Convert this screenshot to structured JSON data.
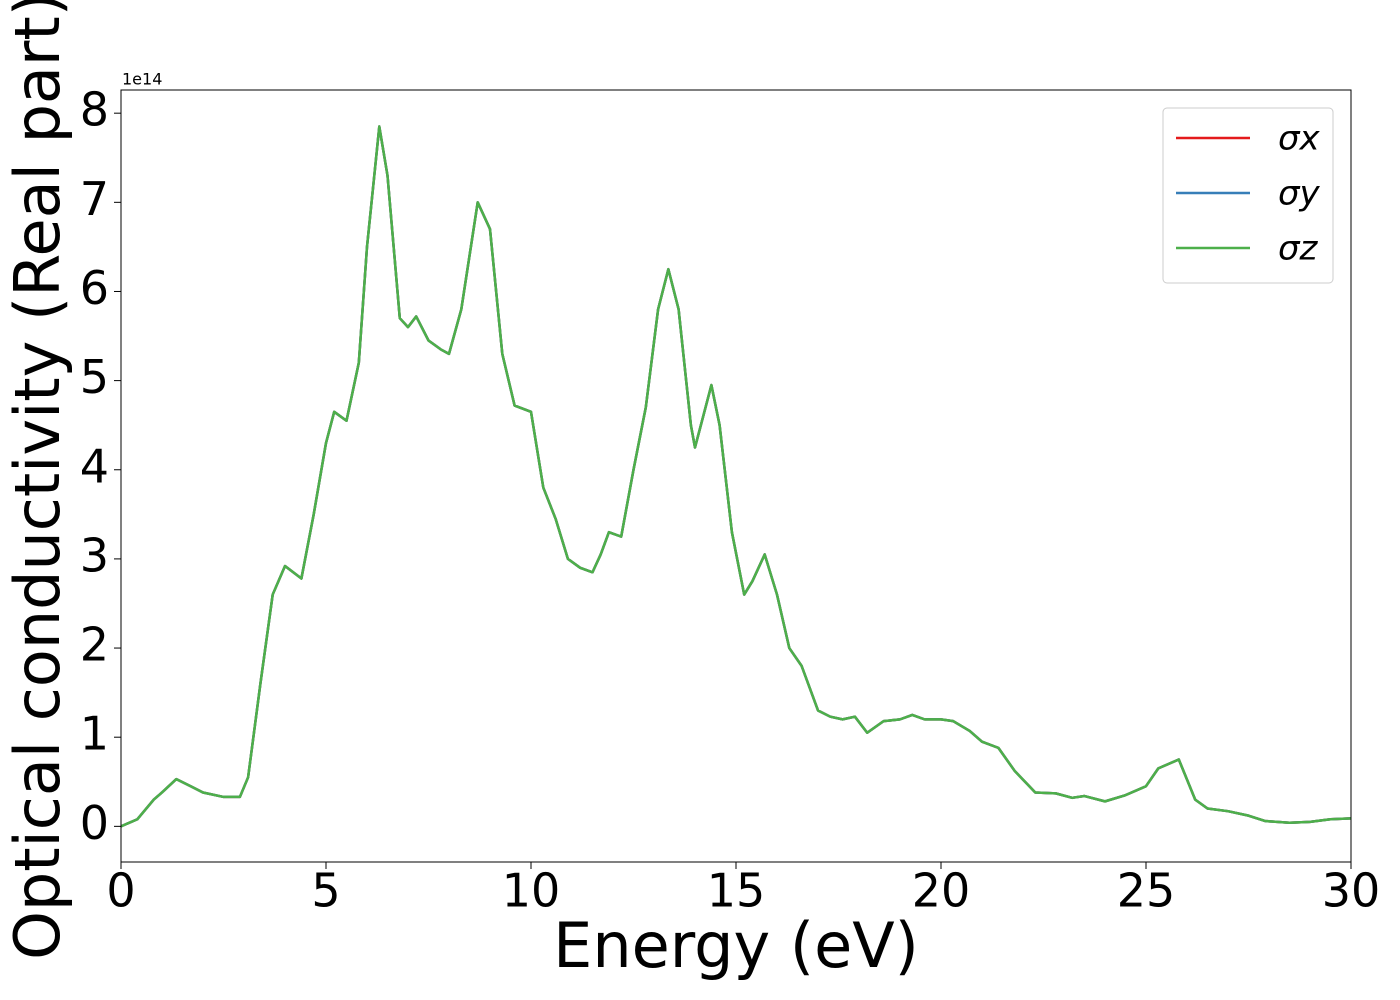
{
  "chart_data": {
    "type": "line",
    "x_label": "Energy (eV)",
    "y_label": "Optical conductivity (Real part)",
    "y_offset_label": "1e14",
    "x": [
      0,
      0.4,
      0.8,
      1.0,
      1.35,
      1.7,
      2.0,
      2.5,
      2.9,
      3.1,
      3.4,
      3.7,
      4.0,
      4.4,
      4.7,
      5.0,
      5.2,
      5.5,
      5.8,
      6.0,
      6.3,
      6.5,
      6.8,
      7.0,
      7.2,
      7.5,
      7.8,
      8.0,
      8.3,
      8.7,
      9.0,
      9.3,
      9.6,
      10.0,
      10.3,
      10.6,
      10.9,
      11.2,
      11.5,
      11.7,
      11.9,
      12.2,
      12.5,
      12.8,
      13.1,
      13.35,
      13.6,
      13.9,
      14.0,
      14.2,
      14.4,
      14.6,
      14.9,
      15.2,
      15.4,
      15.7,
      16.0,
      16.3,
      16.6,
      17.0,
      17.3,
      17.6,
      17.9,
      18.2,
      18.6,
      19.0,
      19.3,
      19.6,
      20.0,
      20.3,
      20.7,
      21.0,
      21.4,
      21.8,
      22.3,
      22.8,
      23.2,
      23.5,
      24.0,
      24.5,
      25.0,
      25.3,
      25.8,
      26.2,
      26.5,
      27.0,
      27.5,
      27.9,
      28.5,
      29.0,
      29.5,
      30.0
    ],
    "series": [
      {
        "name": "σx",
        "color": "#e41a1c",
        "values": [
          0,
          0.08,
          0.3,
          0.38,
          0.53,
          0.45,
          0.38,
          0.33,
          0.33,
          0.55,
          1.6,
          2.6,
          2.92,
          2.78,
          3.5,
          4.3,
          4.65,
          4.55,
          5.2,
          6.5,
          7.85,
          7.3,
          5.7,
          5.6,
          5.72,
          5.45,
          5.35,
          5.3,
          5.8,
          7.0,
          6.7,
          5.3,
          4.72,
          4.65,
          3.8,
          3.45,
          3.0,
          2.9,
          2.85,
          3.05,
          3.3,
          3.25,
          4.0,
          4.7,
          5.8,
          6.25,
          5.8,
          4.5,
          4.25,
          4.6,
          4.95,
          4.5,
          3.3,
          2.6,
          2.75,
          3.05,
          2.6,
          2.0,
          1.8,
          1.3,
          1.23,
          1.2,
          1.23,
          1.05,
          1.18,
          1.2,
          1.25,
          1.2,
          1.2,
          1.18,
          1.07,
          0.95,
          0.88,
          0.62,
          0.38,
          0.37,
          0.32,
          0.34,
          0.28,
          0.35,
          0.45,
          0.65,
          0.75,
          0.3,
          0.2,
          0.17,
          0.12,
          0.06,
          0.04,
          0.05,
          0.08,
          0.09
        ]
      },
      {
        "name": "σy",
        "color": "#377eb8",
        "values": [
          0,
          0.08,
          0.3,
          0.38,
          0.53,
          0.45,
          0.38,
          0.33,
          0.33,
          0.55,
          1.6,
          2.6,
          2.92,
          2.78,
          3.5,
          4.3,
          4.65,
          4.55,
          5.2,
          6.5,
          7.85,
          7.3,
          5.7,
          5.6,
          5.72,
          5.45,
          5.35,
          5.3,
          5.8,
          7.0,
          6.7,
          5.3,
          4.72,
          4.65,
          3.8,
          3.45,
          3.0,
          2.9,
          2.85,
          3.05,
          3.3,
          3.25,
          4.0,
          4.7,
          5.8,
          6.25,
          5.8,
          4.5,
          4.25,
          4.6,
          4.95,
          4.5,
          3.3,
          2.6,
          2.75,
          3.05,
          2.6,
          2.0,
          1.8,
          1.3,
          1.23,
          1.2,
          1.23,
          1.05,
          1.18,
          1.2,
          1.25,
          1.2,
          1.2,
          1.18,
          1.07,
          0.95,
          0.88,
          0.62,
          0.38,
          0.37,
          0.32,
          0.34,
          0.28,
          0.35,
          0.45,
          0.65,
          0.75,
          0.3,
          0.2,
          0.17,
          0.12,
          0.06,
          0.04,
          0.05,
          0.08,
          0.09
        ]
      },
      {
        "name": "σz",
        "color": "#4daf4a",
        "values": [
          0,
          0.08,
          0.3,
          0.38,
          0.53,
          0.45,
          0.38,
          0.33,
          0.33,
          0.55,
          1.6,
          2.6,
          2.92,
          2.78,
          3.5,
          4.3,
          4.65,
          4.55,
          5.2,
          6.5,
          7.85,
          7.3,
          5.7,
          5.6,
          5.72,
          5.45,
          5.35,
          5.3,
          5.8,
          7.0,
          6.7,
          5.3,
          4.72,
          4.65,
          3.8,
          3.45,
          3.0,
          2.9,
          2.85,
          3.05,
          3.3,
          3.25,
          4.0,
          4.7,
          5.8,
          6.25,
          5.8,
          4.5,
          4.25,
          4.6,
          4.95,
          4.5,
          3.3,
          2.6,
          2.75,
          3.05,
          2.6,
          2.0,
          1.8,
          1.3,
          1.23,
          1.2,
          1.23,
          1.05,
          1.18,
          1.2,
          1.25,
          1.2,
          1.2,
          1.18,
          1.07,
          0.95,
          0.88,
          0.62,
          0.38,
          0.37,
          0.32,
          0.34,
          0.28,
          0.35,
          0.45,
          0.65,
          0.75,
          0.3,
          0.2,
          0.17,
          0.12,
          0.06,
          0.04,
          0.05,
          0.08,
          0.09
        ]
      }
    ],
    "xlim": [
      0,
      30
    ],
    "xticks": [
      0,
      5,
      10,
      15,
      20,
      25,
      30
    ],
    "ylim": [
      -0.4,
      8.26
    ],
    "yticks": [
      0,
      1,
      2,
      3,
      4,
      5,
      6,
      7,
      8
    ],
    "legend": "upper right",
    "grid": false
  }
}
